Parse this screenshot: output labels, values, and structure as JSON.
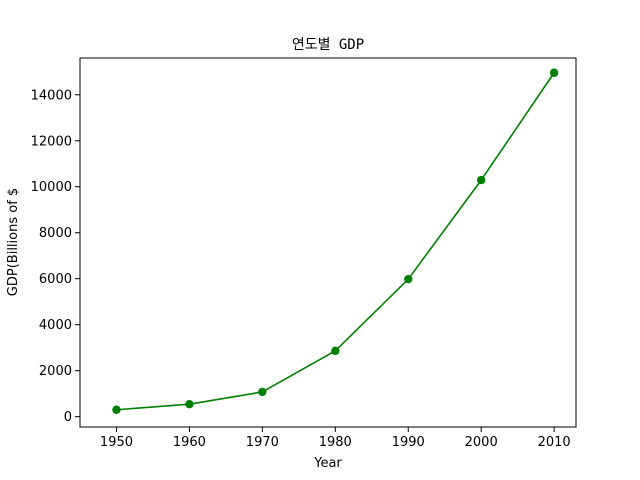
{
  "chart_data": {
    "type": "line",
    "title": "연도별 GDP",
    "xlabel": "Year",
    "ylabel": "GDP(Billions of $",
    "x": [
      1950,
      1960,
      1970,
      1980,
      1990,
      2000,
      2010
    ],
    "series": [
      {
        "name": "GDP",
        "values": [
          300.2,
          543.3,
          1075.9,
          2862.5,
          5979.6,
          10289.7,
          14958.3
        ],
        "color": "#008000",
        "marker": "circle"
      }
    ],
    "xlim": [
      1945.0,
      2013.0
    ],
    "ylim": [
      -450,
      15600
    ],
    "x_ticks": [
      1950,
      1960,
      1970,
      1980,
      1990,
      2000,
      2010
    ],
    "y_ticks": [
      0,
      2000,
      4000,
      6000,
      8000,
      10000,
      12000,
      14000
    ],
    "grid": false,
    "legend": false
  }
}
